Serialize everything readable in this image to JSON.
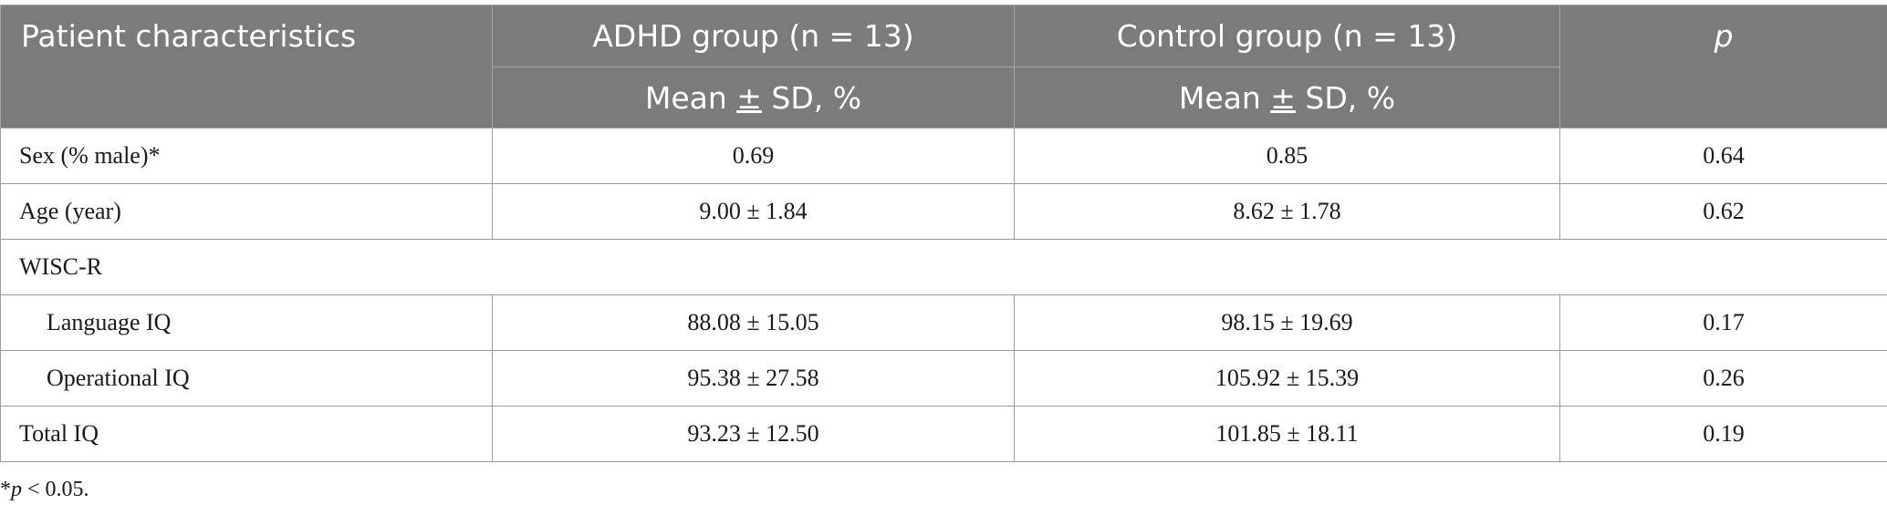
{
  "header": {
    "patient_characteristics": "Patient characteristics",
    "adhd_group": "ADHD group (n = 13)",
    "control_group": "Control group (n = 13)",
    "p": "p",
    "mean_sd_pre": "Mean ",
    "pm": "±",
    "mean_sd_post": " SD, %"
  },
  "rows": [
    {
      "label": "Sex (% male)*",
      "adhd": "0.69",
      "control": "0.85",
      "p": "0.64"
    },
    {
      "label": "Age (year)",
      "adhd": "9.00 ± 1.84",
      "control": "8.62 ± 1.78",
      "p": "0.62"
    },
    {
      "label": "WISC-R"
    },
    {
      "label": "Language IQ",
      "adhd": "88.08 ± 15.05",
      "control": "98.15 ± 19.69",
      "p": "0.17"
    },
    {
      "label": "Operational IQ",
      "adhd": "95.38 ± 27.58",
      "control": "105.92 ± 15.39",
      "p": "0.26"
    },
    {
      "label": "Total IQ",
      "adhd": "93.23 ± 12.50",
      "control": "101.85 ± 18.11",
      "p": "0.19"
    }
  ],
  "footnote": {
    "star": "*",
    "p": "p",
    "rest": " < 0.05."
  }
}
